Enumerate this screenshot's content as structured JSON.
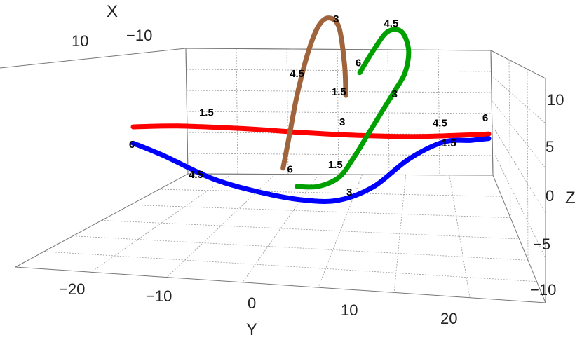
{
  "chart_data": {
    "type": "line3d",
    "axis_labels": {
      "x": "X",
      "y": "Y",
      "z": "Z"
    },
    "x_ticks": [
      "10",
      "−10"
    ],
    "y_ticks": [
      "−20",
      "−10",
      "0",
      "10",
      "20"
    ],
    "z_ticks": [
      "10",
      "5",
      "0",
      "−5",
      "−10"
    ],
    "y_range": [
      -27,
      27
    ],
    "z_range": [
      -12,
      12
    ],
    "grid": true,
    "series": [
      {
        "color": "#ff0000",
        "points": [
          {
            "y": -24.5,
            "z": 7.0
          },
          {
            "y": -18,
            "z": 7.1
          },
          {
            "y": -8,
            "z": 6.8
          },
          {
            "y": 0,
            "z": 6.4
          },
          {
            "y": 8,
            "z": 6.1
          },
          {
            "y": 16,
            "z": 6.0
          },
          {
            "y": 24,
            "z": 6.2
          },
          {
            "y": 26.5,
            "z": 6.3
          }
        ],
        "labels": [
          {
            "text": "1.5",
            "y": -14,
            "z": 8.2
          },
          {
            "text": "3",
            "y": 5.5,
            "z": 7.2
          },
          {
            "text": "4.5",
            "y": 19.5,
            "z": 7.1
          },
          {
            "text": "6",
            "y": 26.0,
            "z": 7.7
          }
        ]
      },
      {
        "color": "#0000ff",
        "points": [
          {
            "y": -24.5,
            "z": 5.2
          },
          {
            "y": -20,
            "z": 3.8
          },
          {
            "y": -13,
            "z": 1.3
          },
          {
            "y": -6,
            "z": -0.2
          },
          {
            "y": 0,
            "z": -1.0
          },
          {
            "y": 5,
            "z": -1.0
          },
          {
            "y": 10,
            "z": 0.5
          },
          {
            "y": 15,
            "z": 3.5
          },
          {
            "y": 20,
            "z": 5.4
          },
          {
            "y": 24,
            "z": 5.6
          },
          {
            "y": 26.5,
            "z": 5.8
          }
        ],
        "labels": [
          {
            "text": "6",
            "y": -24.7,
            "z": 4.7
          },
          {
            "text": "4.5",
            "y": -15.5,
            "z": 1.4
          },
          {
            "text": "3",
            "y": 6.5,
            "z": -0.5
          },
          {
            "text": "1.5",
            "y": 20.8,
            "z": 4.9
          }
        ]
      },
      {
        "color": "#00a000",
        "points": [
          {
            "y": -1,
            "z": 0.5
          },
          {
            "y": 2,
            "z": 0.5
          },
          {
            "y": 5,
            "z": 1.5
          },
          {
            "y": 7,
            "z": 3.5
          },
          {
            "y": 9,
            "z": 6.0
          },
          {
            "y": 11,
            "z": 8.5
          },
          {
            "y": 13,
            "z": 11.0
          },
          {
            "y": 14.5,
            "z": 13.0
          },
          {
            "y": 15,
            "z": 15.5
          },
          {
            "y": 14,
            "z": 17.5
          },
          {
            "y": 12,
            "z": 17.5
          },
          {
            "y": 10,
            "z": 15.5
          },
          {
            "y": 8,
            "z": 13.0
          }
        ],
        "labels": [
          {
            "text": "1.5",
            "y": 4.5,
            "z": 2.5
          },
          {
            "text": "3",
            "y": 13.0,
            "z": 10.3
          },
          {
            "text": "4.5",
            "y": 12.5,
            "z": 18.0
          },
          {
            "text": "6",
            "y": 7.8,
            "z": 13.7
          }
        ]
      },
      {
        "color": "#a0643c",
        "points": [
          {
            "y": -3,
            "z": 2.5
          },
          {
            "y": -2,
            "z": 6.5
          },
          {
            "y": -1,
            "z": 10.5
          },
          {
            "y": 0.5,
            "z": 15.0
          },
          {
            "y": 2,
            "z": 18.0
          },
          {
            "y": 3.5,
            "z": 19.0
          },
          {
            "y": 5,
            "z": 18.0
          },
          {
            "y": 5.8,
            "z": 14.0
          },
          {
            "y": 6,
            "z": 10.5
          }
        ],
        "labels": [
          {
            "text": "3",
            "y": 4.6,
            "z": 18.5
          },
          {
            "text": "4.5",
            "y": -1.0,
            "z": 12.5
          },
          {
            "text": "1.5",
            "y": 5.0,
            "z": 10.5
          },
          {
            "text": "6",
            "y": -2.0,
            "z": 2.0
          }
        ]
      }
    ]
  }
}
